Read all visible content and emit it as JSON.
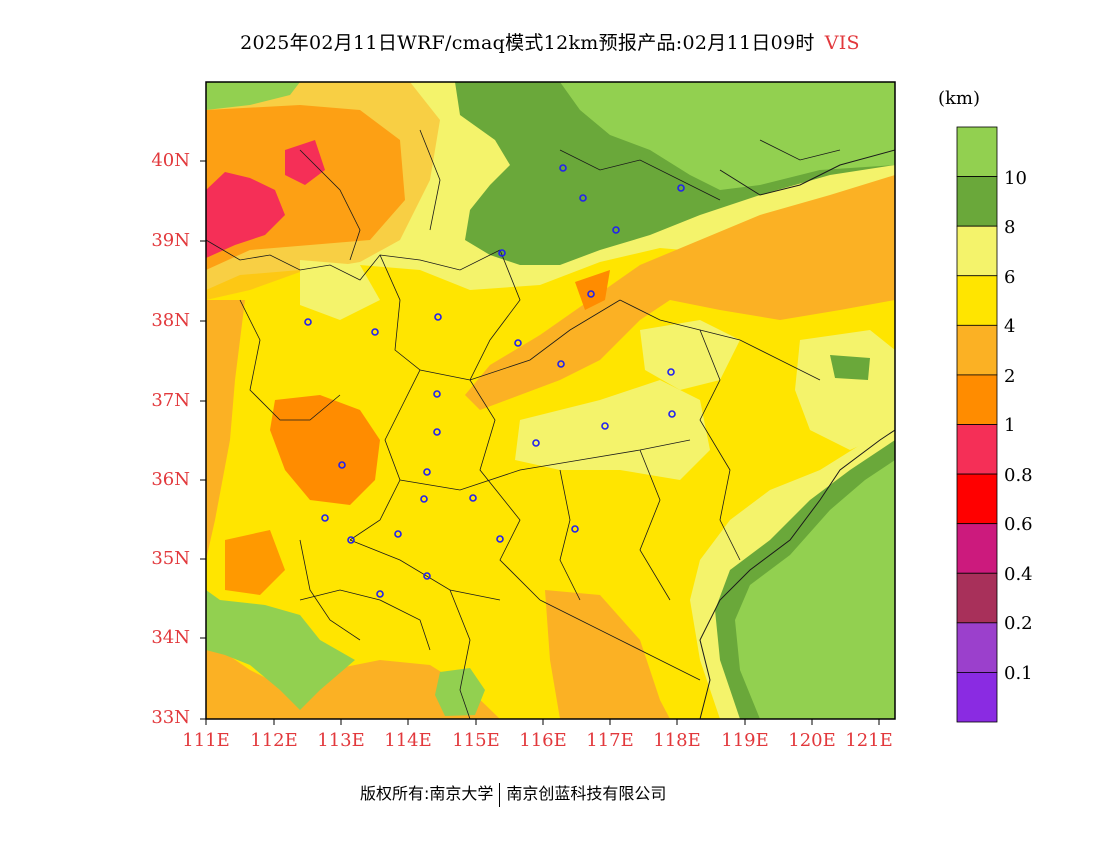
{
  "title": {
    "main": "2025年02月11日WRF/cmaq模式12km预报产品:02月11日09时",
    "variable": "VIS"
  },
  "map": {
    "lat_labels": [
      "40N",
      "39N",
      "38N",
      "37N",
      "36N",
      "35N",
      "34N",
      "33N"
    ],
    "lon_labels": [
      "111E",
      "112E",
      "113E",
      "114E",
      "115E",
      "116E",
      "117E",
      "118E",
      "119E",
      "120E",
      "121E"
    ]
  },
  "colorbar": {
    "unit": "(km)",
    "levels": [
      "10",
      "8",
      "6",
      "4",
      "2",
      "1",
      "0.8",
      "0.6",
      "0.4",
      "0.2",
      "0.1"
    ],
    "colors": [
      "#92d050",
      "#6aa83a",
      "#f4f36b",
      "#ffe500",
      "#fbb124",
      "#ff8c00",
      "#f52f57",
      "#ff0000",
      "#cc1a7d",
      "#a8305a",
      "#9b40cc",
      "#8a2be2"
    ]
  },
  "footer": {
    "copyright": "版权所有:南京大学",
    "company": "南京创蓝科技有限公司"
  }
}
